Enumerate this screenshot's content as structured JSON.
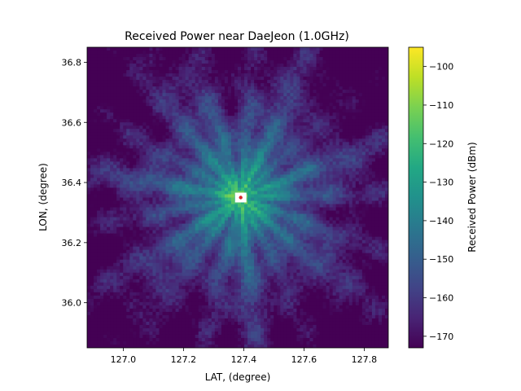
{
  "chart_data": {
    "type": "heatmap",
    "title": "Received Power near DaeJeon (1.0GHz)",
    "xlabel": "LAT, (degree)",
    "ylabel": "LON, (degree)",
    "xlim": [
      126.88,
      127.88
    ],
    "ylim": [
      35.85,
      36.85
    ],
    "x_ticks": [
      127.0,
      127.2,
      127.4,
      127.6,
      127.8
    ],
    "x_tick_labels": [
      "127.0",
      "127.2",
      "127.4",
      "127.6",
      "127.8"
    ],
    "y_ticks": [
      36.0,
      36.2,
      36.4,
      36.6,
      36.8
    ],
    "y_tick_labels": [
      "36.0",
      "36.2",
      "36.4",
      "36.6",
      "36.8"
    ],
    "grid": false,
    "colormap": "viridis",
    "colorbar": {
      "label": "Received Power (dBm)",
      "range": [
        -173,
        -95
      ],
      "ticks": [
        -100,
        -110,
        -120,
        -130,
        -140,
        -150,
        -160,
        -170
      ],
      "tick_labels": [
        "−100",
        "−110",
        "−120",
        "−130",
        "−140",
        "−150",
        "−160",
        "−170"
      ]
    },
    "transmitter": {
      "lat": 127.39,
      "lon": 36.35,
      "marker_color": "#d62728",
      "peak_color": "#ffffff"
    },
    "field_summary": {
      "peak_dBm": -95,
      "urban_core_dBm": -118,
      "rural_background_dBm": -162,
      "min_dBm": -173
    }
  }
}
